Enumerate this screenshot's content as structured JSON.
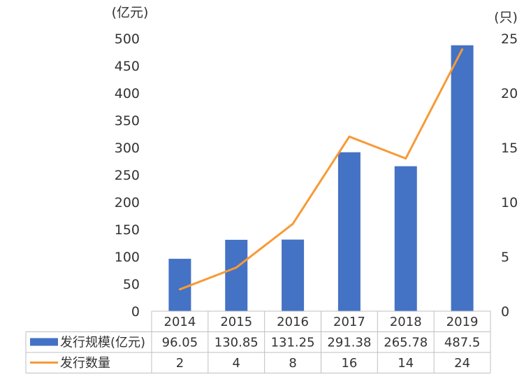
{
  "chart_data": {
    "type": "bar+line",
    "categories": [
      "2014",
      "2015",
      "2016",
      "2017",
      "2018",
      "2019"
    ],
    "y_left_unit": "(亿元)",
    "y_right_unit": "(只)",
    "ylim_left": [
      0,
      500
    ],
    "ylim_right": [
      0,
      25
    ],
    "y_left_ticks": [
      "0",
      "50",
      "100",
      "150",
      "200",
      "250",
      "300",
      "350",
      "400",
      "450",
      "500"
    ],
    "y_right_ticks": [
      "0",
      "5",
      "10",
      "15",
      "20",
      "25"
    ],
    "series": [
      {
        "name": "发行规模(亿元)",
        "type": "bar",
        "axis": "left",
        "color": "#4472C4",
        "values": [
          96.05,
          130.85,
          131.25,
          291.38,
          265.78,
          487.5
        ],
        "labels": [
          "96.05",
          "130.85",
          "131.25",
          "291.38",
          "265.78",
          "487.5"
        ]
      },
      {
        "name": "发行数量",
        "type": "line",
        "axis": "right",
        "color": "#F79A37",
        "values": [
          2,
          4,
          8,
          16,
          14,
          24
        ],
        "labels": [
          "2",
          "4",
          "8",
          "16",
          "14",
          "24"
        ]
      }
    ],
    "grid": false,
    "legend": "data-table"
  }
}
